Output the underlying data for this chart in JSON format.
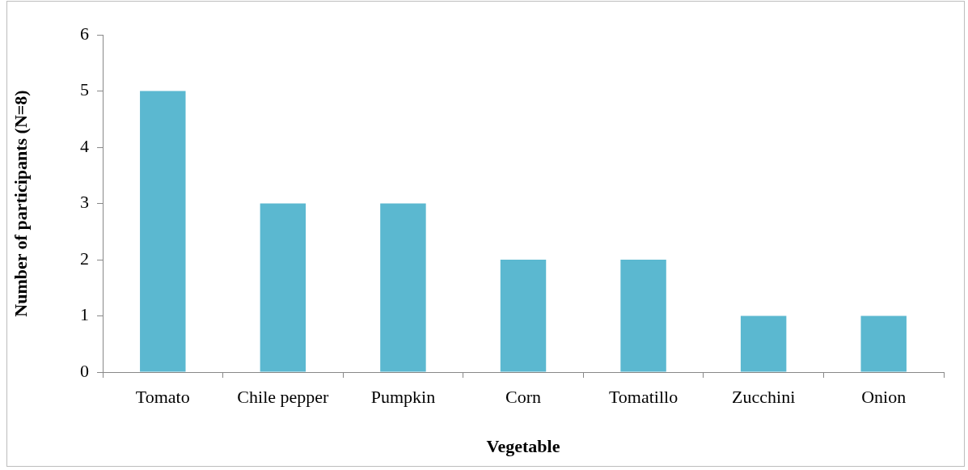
{
  "chart_data": {
    "type": "bar",
    "xlabel": "Vegetable",
    "ylabel": "Number of participants (N=8)",
    "categories": [
      "Tomato",
      "Chile pepper",
      "Pumpkin",
      "Corn",
      "Tomatillo",
      "Zucchini",
      "Onion"
    ],
    "values": [
      5,
      3,
      3,
      2,
      2,
      1,
      1
    ],
    "color": "#5bb8d0",
    "ylim": [
      0,
      6
    ],
    "yticks": [
      0,
      1,
      2,
      3,
      4,
      5,
      6
    ],
    "grid": false,
    "legend": false
  }
}
